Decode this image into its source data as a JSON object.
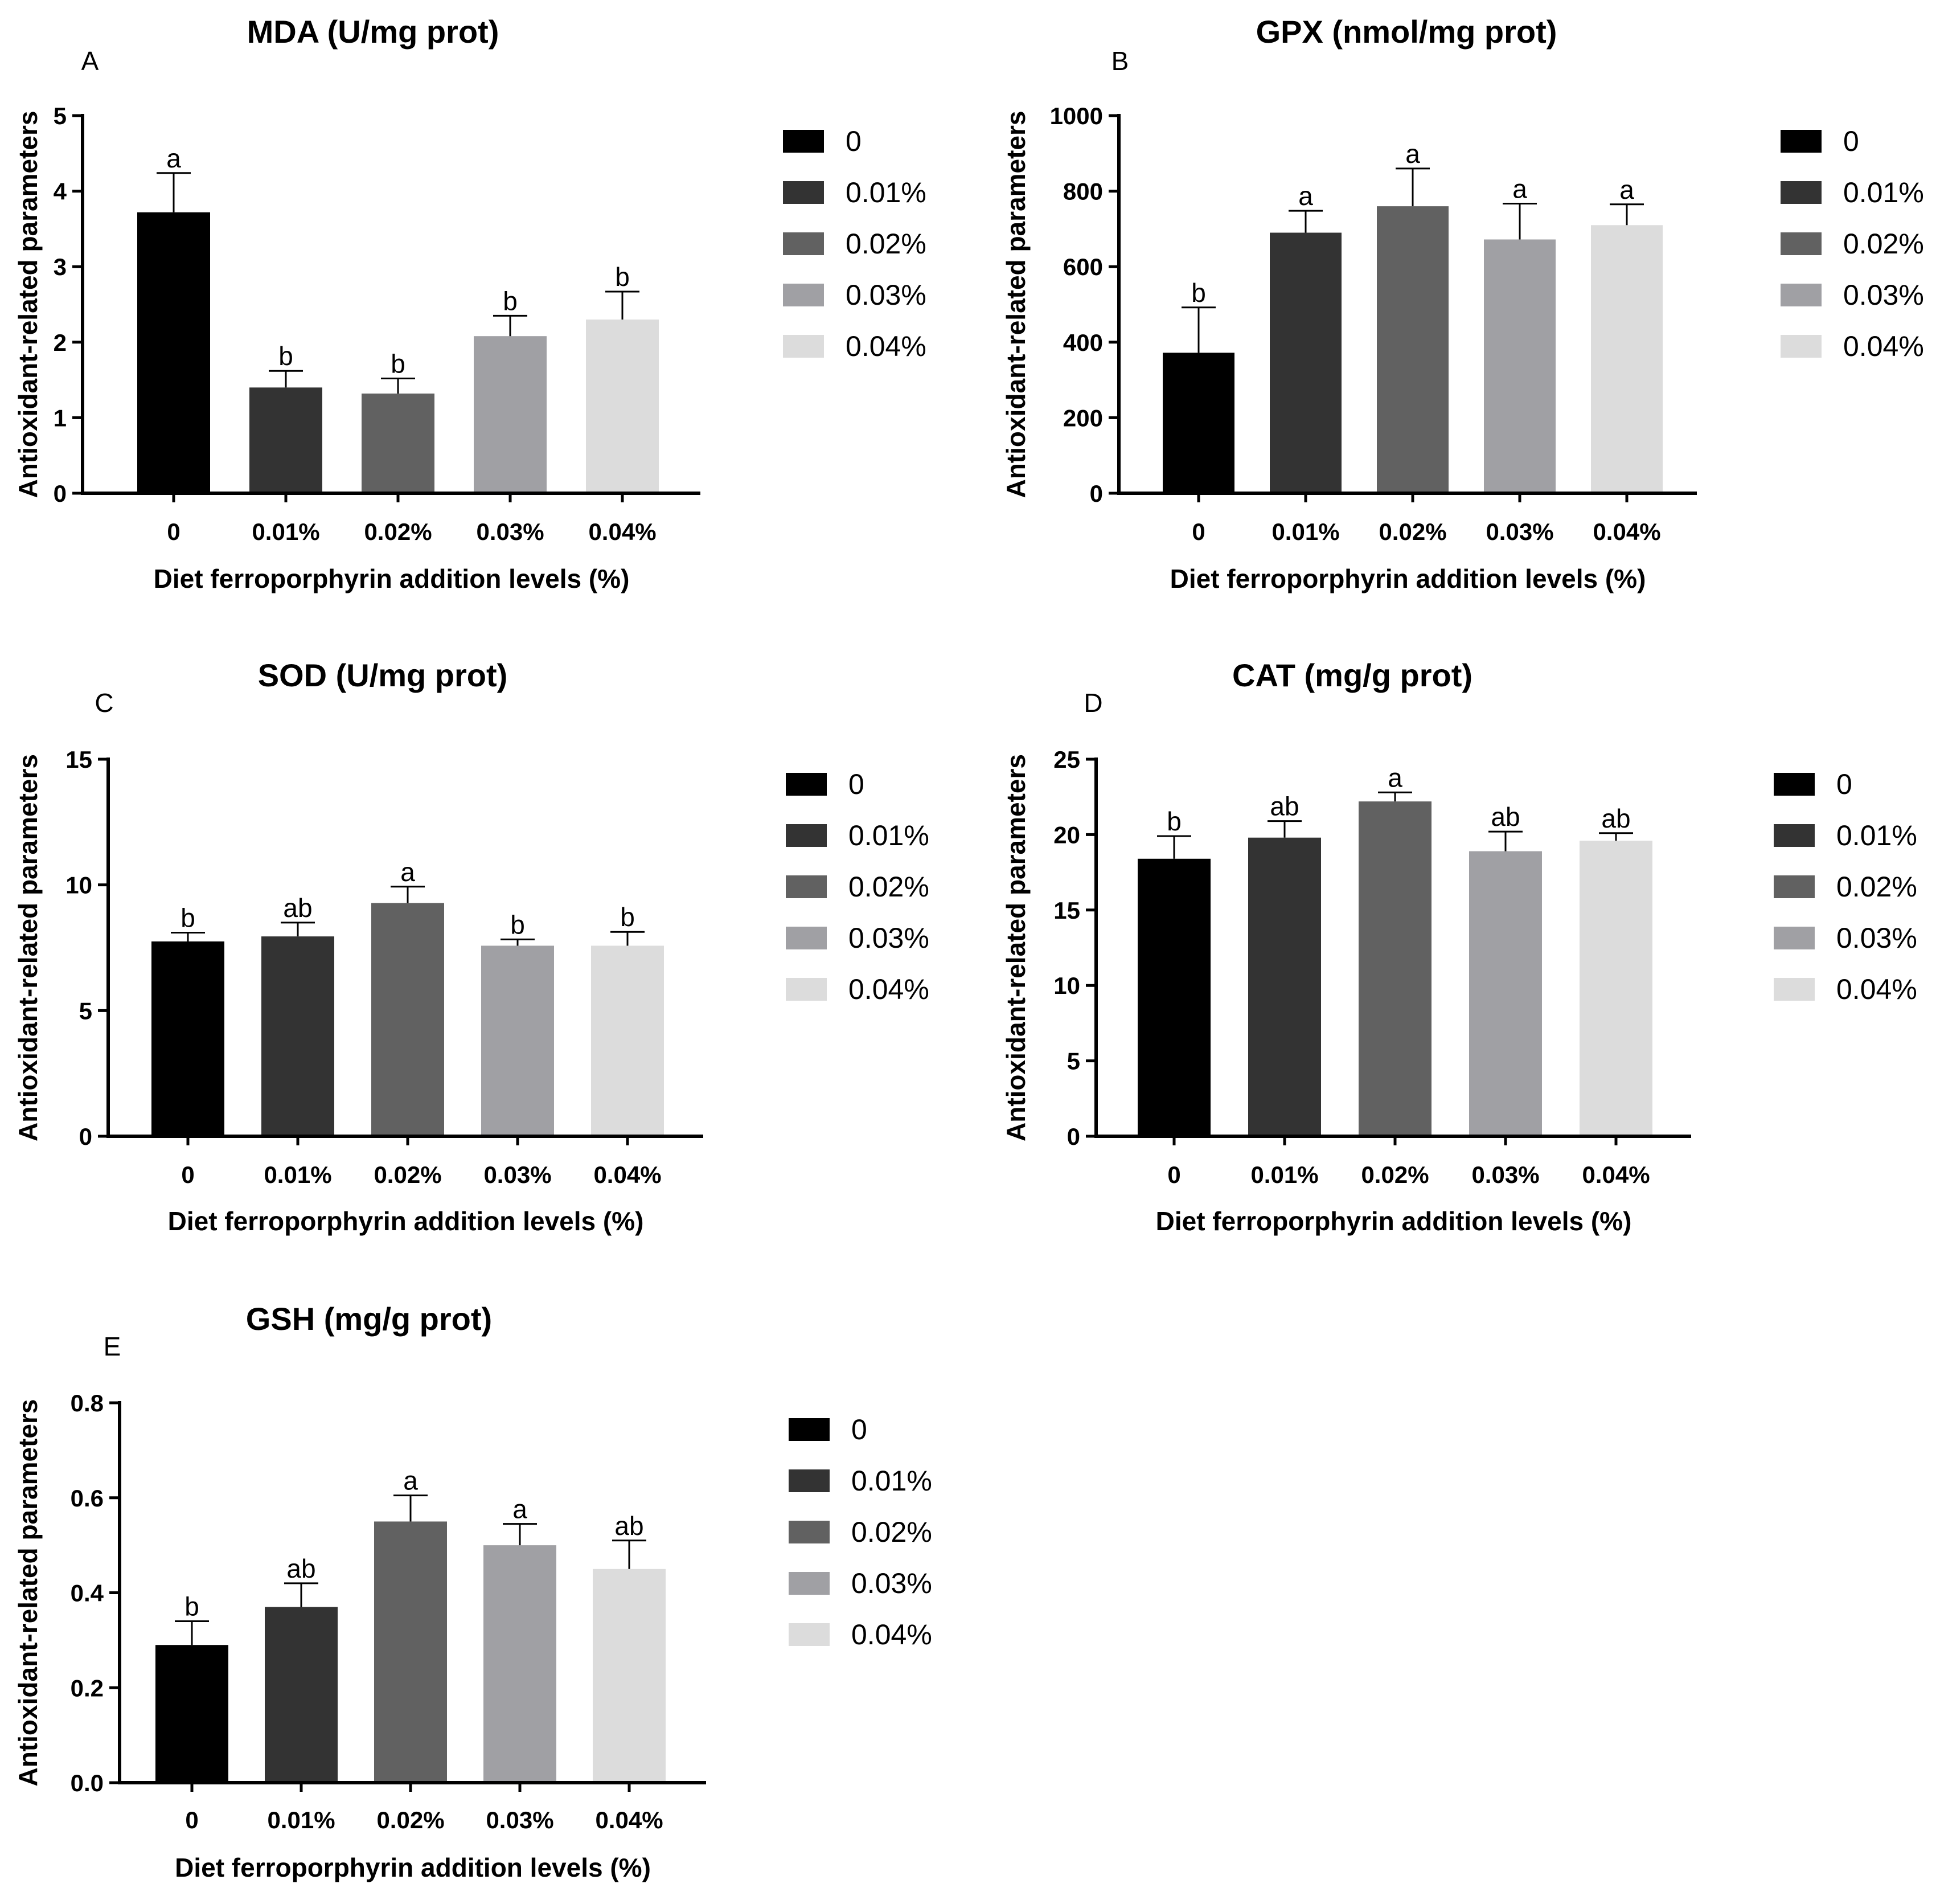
{
  "figure": {
    "x_axis_title": "Diet ferroporphyrin addition levels (%)",
    "y_axis_title": "Antioxidant-related parameters",
    "legend": [
      "0",
      "0.01%",
      "0.02%",
      "0.03%",
      "0.04%"
    ],
    "series_colors": [
      "#000000",
      "#333333",
      "#616161",
      "#a0a0a4",
      "#dcdcdc"
    ]
  },
  "chart_data": [
    {
      "type": "bar",
      "panel": "A",
      "title": "MDA (U/mg prot)",
      "categories": [
        "0",
        "0.01%",
        "0.02%",
        "0.03%",
        "0.04%"
      ],
      "values": [
        3.72,
        1.4,
        1.32,
        2.08,
        2.3
      ],
      "errors": [
        0.52,
        0.22,
        0.2,
        0.27,
        0.37
      ],
      "significance": [
        "a",
        "b",
        "b",
        "b",
        "b"
      ],
      "ylim": [
        0,
        5
      ],
      "yticks": [
        0,
        1,
        2,
        3,
        4,
        5
      ],
      "ytick_labels": [
        "0",
        "1",
        "2",
        "3",
        "4",
        "5"
      ],
      "xlabel": "Diet ferroporphyrin addition levels (%)",
      "ylabel": "Antioxidant-related parameters"
    },
    {
      "type": "bar",
      "panel": "B",
      "title": "GPX (nmol/mg prot)",
      "categories": [
        "0",
        "0.01%",
        "0.02%",
        "0.03%",
        "0.04%"
      ],
      "values": [
        372,
        690,
        760,
        672,
        710
      ],
      "errors": [
        120,
        58,
        100,
        95,
        55
      ],
      "significance": [
        "b",
        "a",
        "a",
        "a",
        "a"
      ],
      "ylim": [
        0,
        1000
      ],
      "yticks": [
        0,
        200,
        400,
        600,
        800,
        1000
      ],
      "ytick_labels": [
        "0",
        "200",
        "400",
        "600",
        "800",
        "1000"
      ],
      "xlabel": "Diet ferroporphyrin addition levels (%)",
      "ylabel": "Antioxidant-related parameters"
    },
    {
      "type": "bar",
      "panel": "C",
      "title": "SOD (U/mg prot)",
      "categories": [
        "0",
        "0.01%",
        "0.02%",
        "0.03%",
        "0.04%"
      ],
      "values": [
        7.75,
        7.95,
        9.28,
        7.58,
        7.58
      ],
      "errors": [
        0.35,
        0.55,
        0.65,
        0.25,
        0.55
      ],
      "significance": [
        "b",
        "ab",
        "a",
        "b",
        "b"
      ],
      "ylim": [
        0,
        15
      ],
      "yticks": [
        0,
        5,
        10,
        15
      ],
      "ytick_labels": [
        "0",
        "5",
        "10",
        "15"
      ],
      "xlabel": "Diet ferroporphyrin addition levels (%)",
      "ylabel": "Antioxidant-related parameters"
    },
    {
      "type": "bar",
      "panel": "D",
      "title": "CAT (mg/g prot)",
      "categories": [
        "0",
        "0.01%",
        "0.02%",
        "0.03%",
        "0.04%"
      ],
      "values": [
        18.4,
        19.8,
        22.2,
        18.9,
        19.6
      ],
      "errors": [
        1.5,
        1.1,
        0.6,
        1.3,
        0.5
      ],
      "significance": [
        "b",
        "ab",
        "a",
        "ab",
        "ab"
      ],
      "ylim": [
        0,
        25
      ],
      "yticks": [
        0,
        5,
        10,
        15,
        20,
        25
      ],
      "ytick_labels": [
        "0",
        "5",
        "10",
        "15",
        "20",
        "25"
      ],
      "xlabel": "Diet ferroporphyrin addition levels (%)",
      "ylabel": "Antioxidant-related parameters"
    },
    {
      "type": "bar",
      "panel": "E",
      "title": "GSH (mg/g prot)",
      "categories": [
        "0",
        "0.01%",
        "0.02%",
        "0.03%",
        "0.04%"
      ],
      "values": [
        0.29,
        0.37,
        0.55,
        0.5,
        0.45
      ],
      "errors": [
        0.05,
        0.05,
        0.055,
        0.045,
        0.06
      ],
      "significance": [
        "b",
        "ab",
        "a",
        "a",
        "ab"
      ],
      "ylim": [
        0,
        0.8
      ],
      "yticks": [
        0,
        0.2,
        0.4,
        0.6,
        0.8
      ],
      "ytick_labels": [
        "0.0",
        "0.2",
        "0.4",
        "0.6",
        "0.8"
      ],
      "xlabel": "Diet ferroporphyrin addition levels (%)",
      "ylabel": "Antioxidant-related parameters"
    }
  ]
}
